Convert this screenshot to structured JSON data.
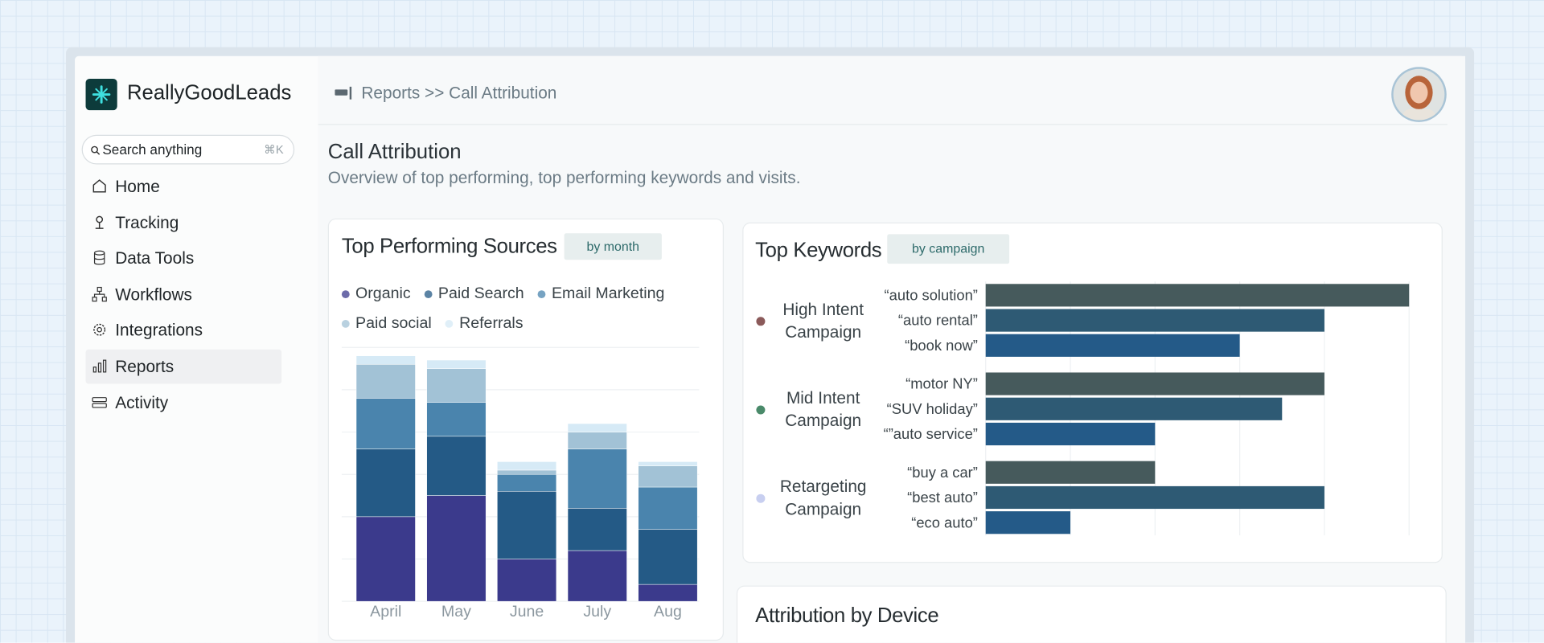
{
  "sidebar": {
    "brand": "ReallyGoodLeads",
    "search_placeholder": "Search anything",
    "search_shortcut": "⌘K",
    "nav": [
      "Home",
      "Tracking",
      "Data Tools",
      "Workflows",
      "Integrations",
      "Reports",
      "Activity"
    ]
  },
  "header": {
    "breadcrumb": "Reports >> Call Attribution"
  },
  "page": {
    "title": "Call Attribution",
    "subtitle": "Overview of top performing, top performing keywords and visits."
  },
  "sources_chart": {
    "type": "bar",
    "stacked": true,
    "title": "Top Performing Sources",
    "toggle": "by month",
    "categories": [
      "April",
      "May",
      "June",
      "July",
      "Aug"
    ],
    "ylim": [
      0,
      60
    ],
    "yticks": [
      0,
      10,
      20,
      30,
      40,
      50,
      60
    ],
    "grid": true,
    "series": [
      {
        "name": "Organic",
        "color": "#3b3a8c",
        "values": [
          20,
          25,
          10,
          12,
          4
        ]
      },
      {
        "name": "Paid Search",
        "color": "#245a86",
        "values": [
          16,
          14,
          16,
          10,
          13
        ]
      },
      {
        "name": "Email Marketing",
        "color": "#4a84ad",
        "values": [
          12,
          8,
          4,
          14,
          10
        ]
      },
      {
        "name": "Paid social",
        "color": "#a2c2d6",
        "values": [
          8,
          8,
          1,
          4,
          5
        ]
      },
      {
        "name": "Referrals",
        "color": "#d6eaf6",
        "values": [
          2,
          2,
          2,
          2,
          1
        ]
      }
    ]
  },
  "keywords_chart": {
    "type": "bar",
    "orientation": "horizontal",
    "title": "Top Keywords",
    "toggle": "by campaign",
    "xlim": [
      0,
      5
    ],
    "xticks": [
      0,
      1,
      2,
      3,
      4,
      5
    ],
    "grid": true,
    "bar_colors": [
      "#465a5c",
      "#2e5a74",
      "#245a88"
    ],
    "groups": [
      {
        "name": "High Intent Campaign",
        "color": "#8b5a5a",
        "categories": [
          "“auto solution”",
          "“auto rental”",
          "“book now”"
        ],
        "values": [
          5,
          4,
          3
        ]
      },
      {
        "name": "Mid Intent Campaign",
        "color": "#4a8a6a",
        "categories": [
          "“motor NY”",
          "“SUV holiday”",
          "“”auto service”"
        ],
        "values": [
          4,
          3.5,
          2
        ]
      },
      {
        "name": "Retargeting Campaign",
        "color": "#c8cff0",
        "categories": [
          "“buy a car”",
          "“best auto”",
          "“eco auto”"
        ],
        "values": [
          2,
          4,
          1
        ]
      }
    ]
  },
  "device_card": {
    "title": "Attribution by Device"
  }
}
